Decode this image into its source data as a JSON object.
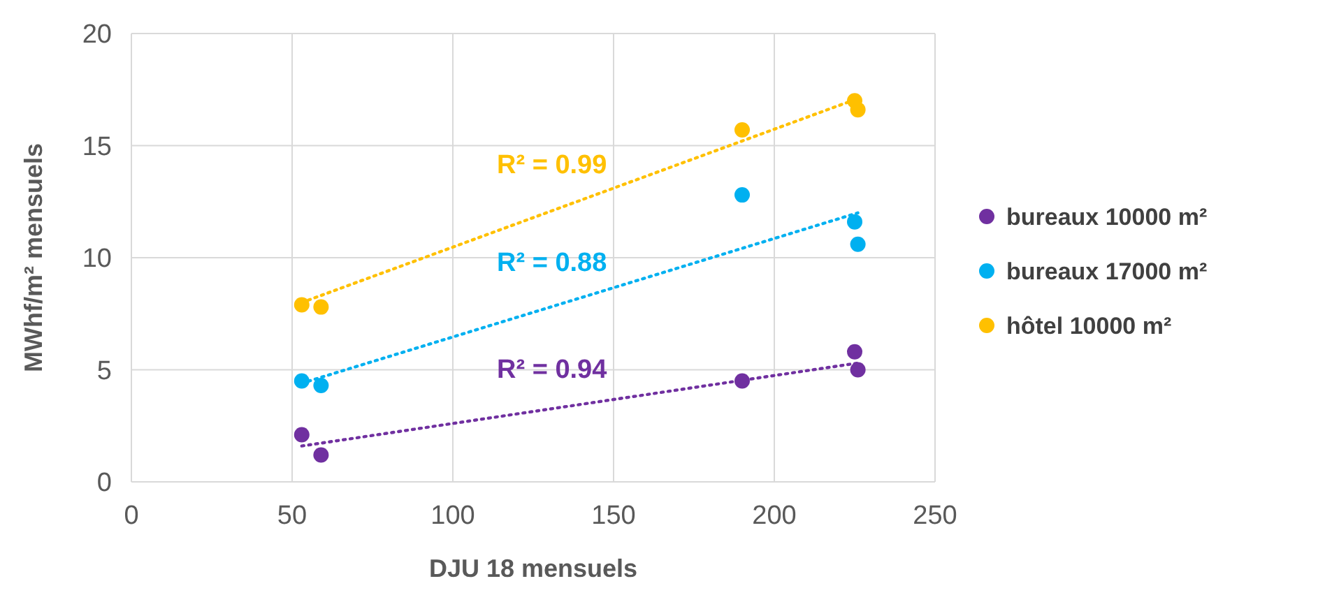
{
  "chart_data": {
    "type": "scatter",
    "xlabel": "DJU 18 mensuels",
    "ylabel": "MWhf/m² mensuels",
    "xlim": [
      0,
      250
    ],
    "xticks": [
      0,
      50,
      100,
      150,
      200,
      250
    ],
    "ylim": [
      0,
      20
    ],
    "yticks": [
      0,
      5,
      10,
      15,
      20
    ],
    "grid": true,
    "legend": "right",
    "marker": "circle",
    "series": [
      {
        "name": "bureaux 10000 m²",
        "color": "#7030a0",
        "x": [
          53,
          59,
          190,
          225,
          226
        ],
        "values": [
          2.1,
          1.2,
          4.5,
          5.8,
          5.0
        ]
      },
      {
        "name": "bureaux 17000 m²",
        "color": "#00b0f0",
        "x": [
          53,
          59,
          190,
          225,
          226
        ],
        "values": [
          4.5,
          4.3,
          12.8,
          11.6,
          10.6
        ]
      },
      {
        "name": "hôtel 10000 m²",
        "color": "#ffc000",
        "x": [
          53,
          59,
          190,
          225,
          226
        ],
        "values": [
          7.9,
          7.8,
          15.7,
          17.0,
          16.6
        ]
      },
      {
        "type": "line",
        "marker": "none",
        "color": "#7030a0",
        "line_style": "dotted",
        "x": [
          53,
          226
        ],
        "values": [
          1.6,
          5.3
        ]
      },
      {
        "type": "line",
        "marker": "none",
        "color": "#00b0f0",
        "line_style": "dotted",
        "x": [
          53,
          226
        ],
        "values": [
          4.4,
          12.0
        ]
      },
      {
        "type": "line",
        "marker": "none",
        "color": "#ffc000",
        "line_style": "dotted",
        "x": [
          53,
          226
        ],
        "values": [
          8.0,
          17.1
        ]
      }
    ],
    "annotations": [
      "R² = 0.94",
      "R² = 0.88",
      "R² = 0.99"
    ]
  }
}
